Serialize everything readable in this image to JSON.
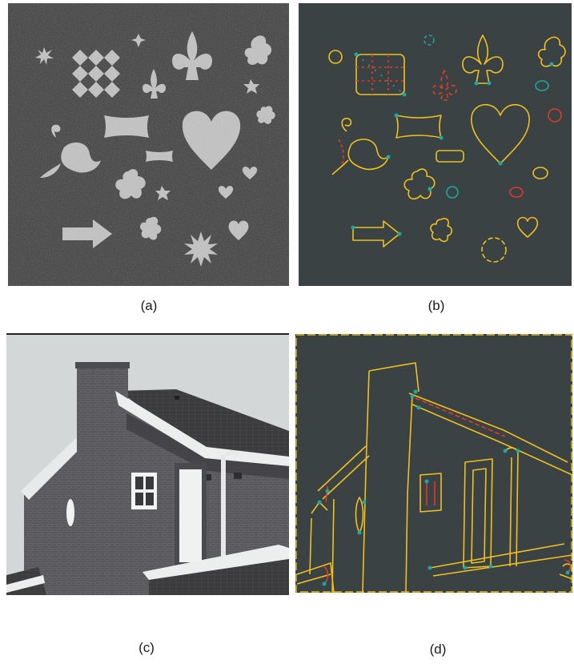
{
  "panels": [
    {
      "id": "a",
      "caption": "(a)",
      "content": "noisy-shapes-image"
    },
    {
      "id": "b",
      "caption": "(b)",
      "content": "shape-edge-map"
    },
    {
      "id": "c",
      "caption": "(c)",
      "content": "house-photo"
    },
    {
      "id": "d",
      "caption": "(d)",
      "content": "house-edge-map"
    }
  ],
  "colors": {
    "shapes_background": "#2a2a2a",
    "shape_fill": "#c4c4c4",
    "edge_background": "#3b4243",
    "edge_yellow": "#f0c020",
    "edge_red": "#e03a2a",
    "edge_teal": "#1aa8a0",
    "sky": "#d4d7d8",
    "brick": "#5a5a5e"
  }
}
